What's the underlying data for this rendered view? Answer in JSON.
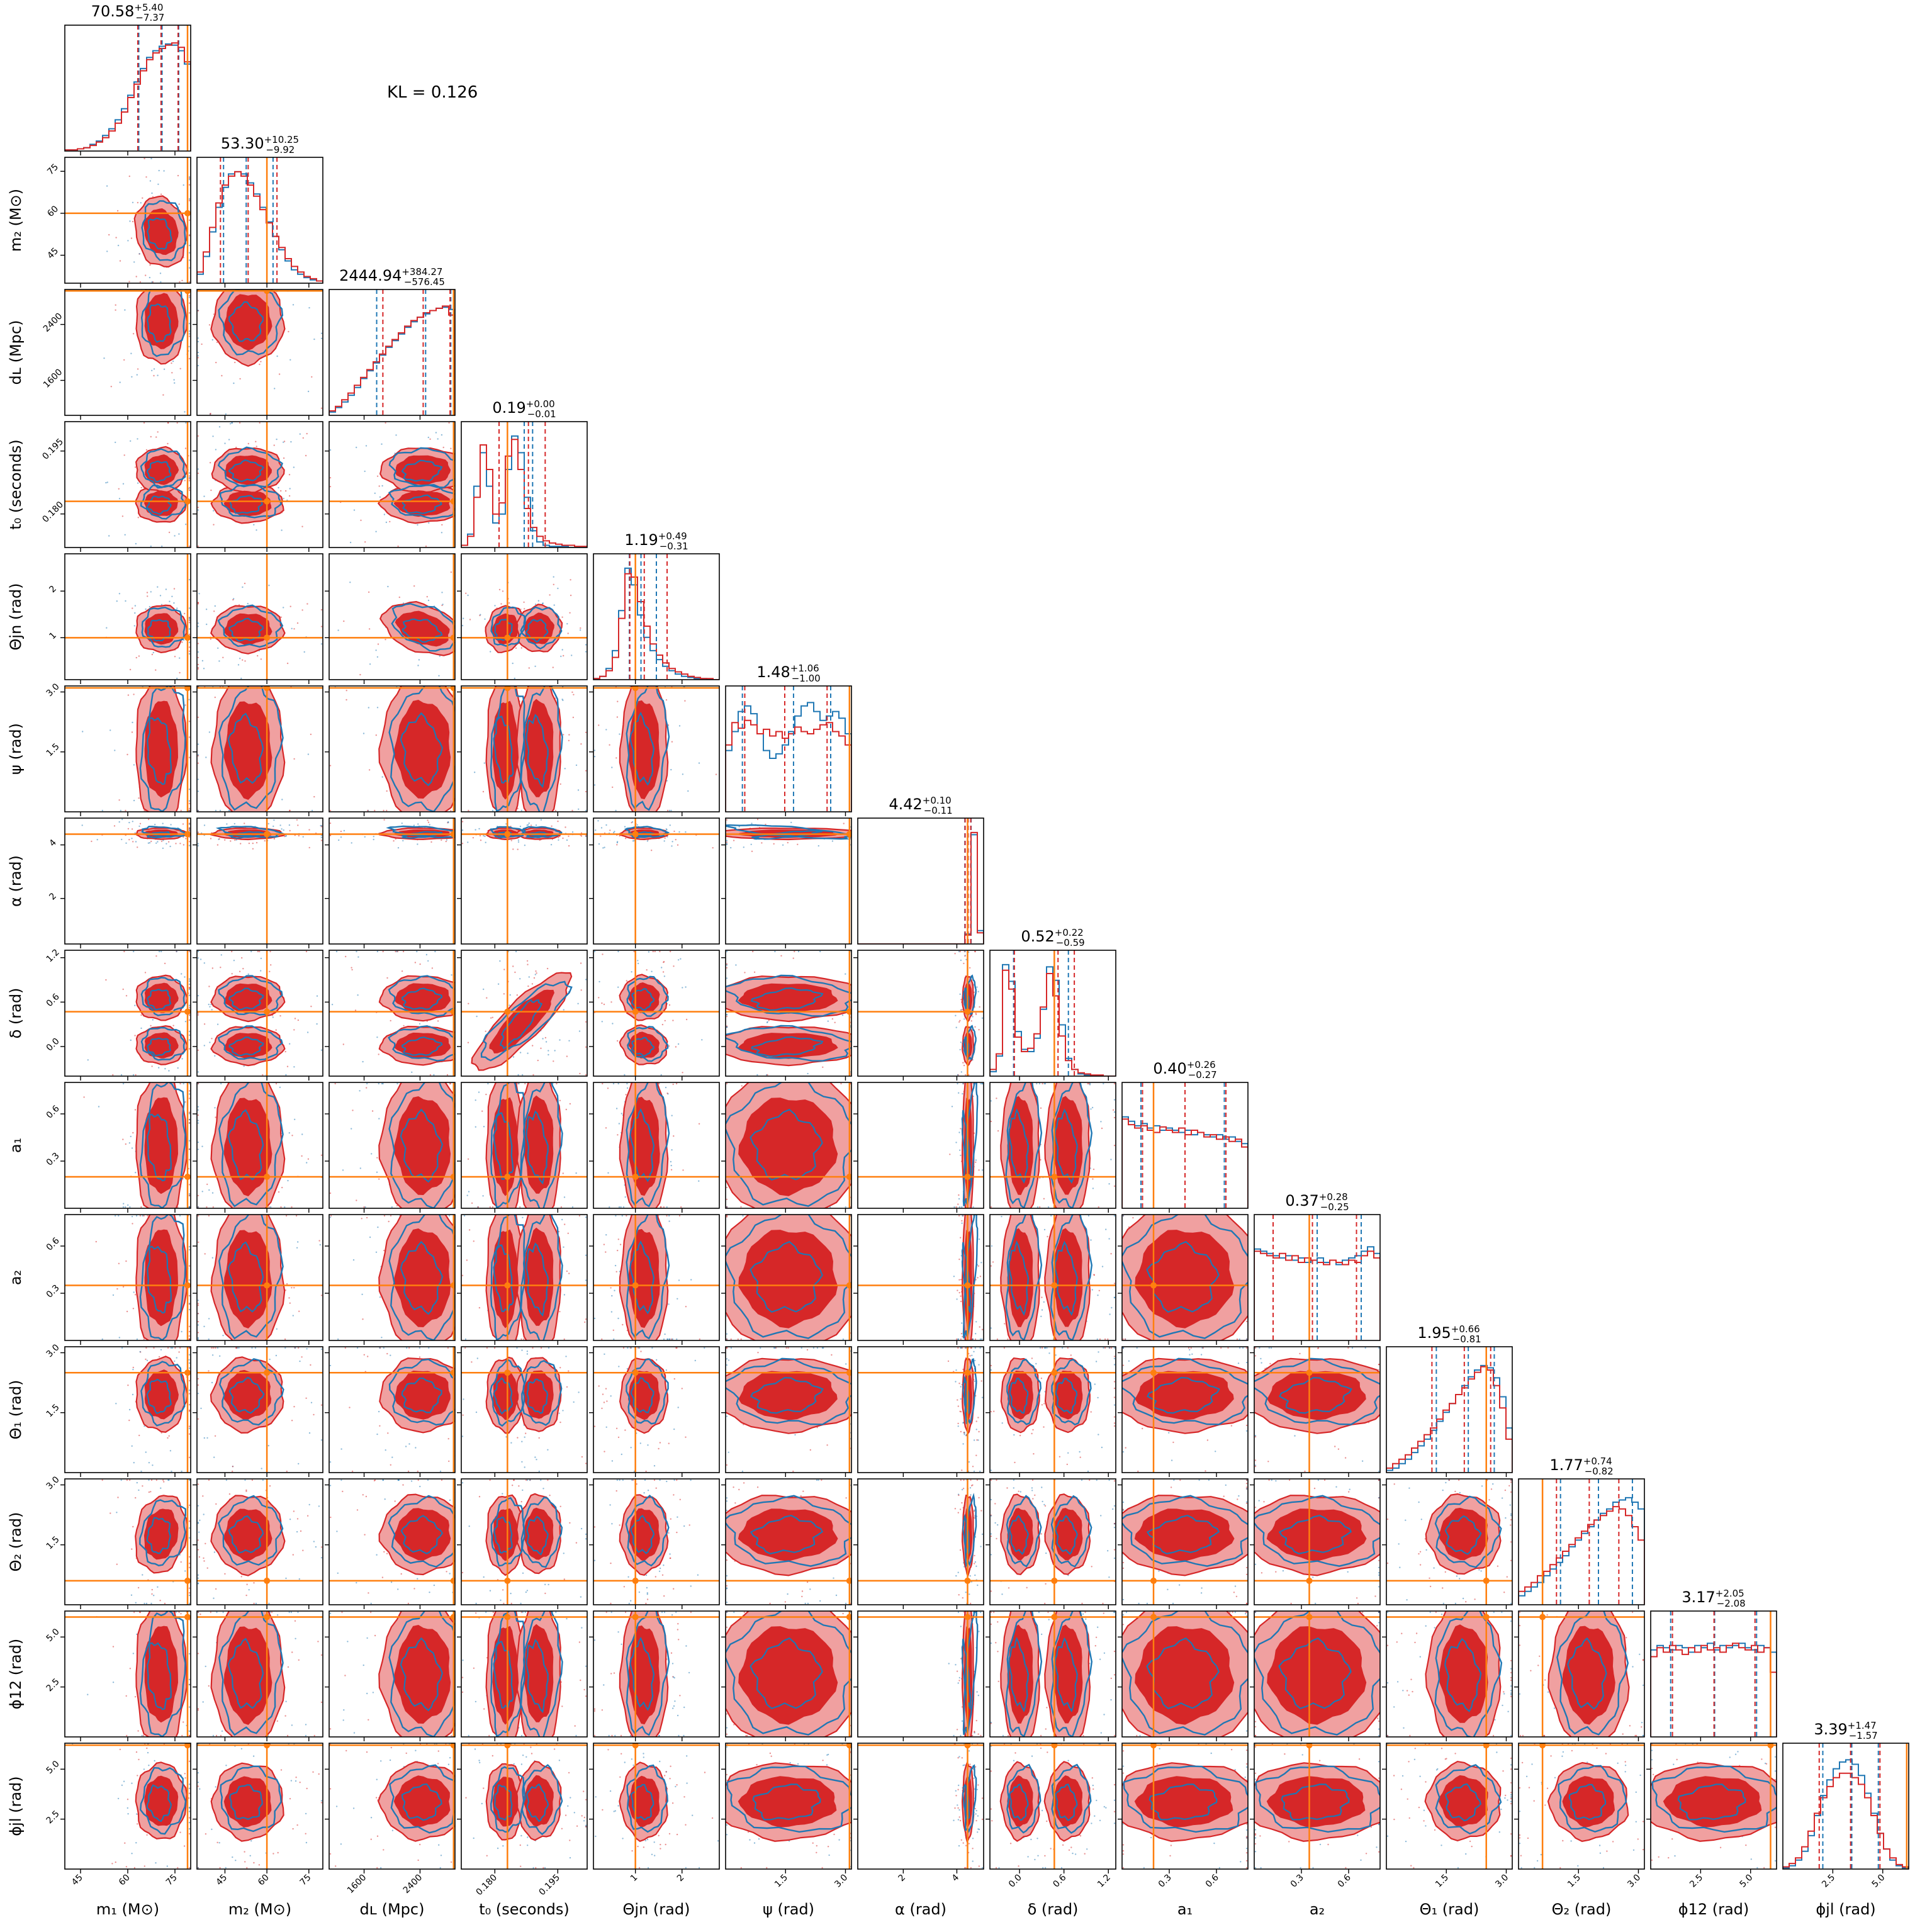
{
  "figure": {
    "kl_label": "KL = 0.126"
  },
  "colors": {
    "series_a": "#d62728",
    "series_a_fill": "#f0a0a0",
    "series_b": "#1f77b4",
    "truth": "#ff7f0e"
  },
  "chart_data": {
    "type": "corner",
    "title": "",
    "kl_divergence": 0.126,
    "parameters": [
      {
        "key": "m1",
        "label": "m₁ (M⊙)",
        "range": [
          40,
          80
        ],
        "ticks": [
          45,
          60,
          75
        ],
        "truth": 79,
        "summary": "70.58",
        "plus": "+5.40",
        "minus": "−7.37"
      },
      {
        "key": "m2",
        "label": "m₂ (M⊙)",
        "range": [
          35,
          80
        ],
        "ticks": [
          45,
          60,
          75
        ],
        "truth": 60,
        "summary": "53.30",
        "plus": "+10.25",
        "minus": "−9.92"
      },
      {
        "key": "dL",
        "label": "dʟ (Mpc)",
        "range": [
          1100,
          2900
        ],
        "ticks": [
          1600,
          2400
        ],
        "truth": 2880,
        "summary": "2444.94",
        "plus": "+384.27",
        "minus": "−576.45"
      },
      {
        "key": "t0",
        "label": "t₀ (seconds)",
        "range": [
          0.172,
          0.202
        ],
        "ticks": [
          0.18,
          0.195
        ],
        "truth": 0.183,
        "summary": "0.19",
        "plus": "+0.00",
        "minus": "−0.01"
      },
      {
        "key": "thjn",
        "label": "Θjn (rad)",
        "range": [
          0.1,
          2.8
        ],
        "ticks": [
          1,
          2
        ],
        "truth": 1.0,
        "summary": "1.19",
        "plus": "+0.49",
        "minus": "−0.31"
      },
      {
        "key": "psi",
        "label": "ψ (rad)",
        "range": [
          0.0,
          3.15
        ],
        "ticks": [
          1.5,
          3.0
        ],
        "truth": 3.1,
        "summary": "1.48",
        "plus": "+1.06",
        "minus": "−1.00"
      },
      {
        "key": "alpha",
        "label": "α (rad)",
        "range": [
          0.3,
          5.0
        ],
        "ticks": [
          2,
          4
        ],
        "truth": 4.4,
        "summary": "4.42",
        "plus": "+0.10",
        "minus": "−0.11"
      },
      {
        "key": "delta",
        "label": "δ (rad)",
        "range": [
          -0.4,
          1.3
        ],
        "ticks": [
          0.0,
          0.6,
          1.2
        ],
        "truth": 0.47,
        "summary": "0.52",
        "plus": "+0.22",
        "minus": "−0.59"
      },
      {
        "key": "a1",
        "label": "a₁",
        "range": [
          0.0,
          0.8
        ],
        "ticks": [
          0.3,
          0.6
        ],
        "truth": 0.2,
        "summary": "0.40",
        "plus": "+0.26",
        "minus": "−0.27"
      },
      {
        "key": "a2",
        "label": "a₂",
        "range": [
          0.0,
          0.8
        ],
        "ticks": [
          0.3,
          0.6
        ],
        "truth": 0.35,
        "summary": "0.37",
        "plus": "+0.28",
        "minus": "−0.25"
      },
      {
        "key": "th1",
        "label": "Θ₁ (rad)",
        "range": [
          0.0,
          3.15
        ],
        "ticks": [
          1.5,
          3.0
        ],
        "truth": 2.5,
        "summary": "1.95",
        "plus": "+0.66",
        "minus": "−0.81"
      },
      {
        "key": "th2",
        "label": "Θ₂ (rad)",
        "range": [
          0.0,
          3.15
        ],
        "ticks": [
          1.5,
          3.0
        ],
        "truth": 0.6,
        "summary": "1.77",
        "plus": "+0.74",
        "minus": "−0.82"
      },
      {
        "key": "phi12",
        "label": "ϕ12 (rad)",
        "range": [
          0.0,
          6.3
        ],
        "ticks": [
          2.5,
          5.0
        ],
        "truth": 6.0,
        "summary": "3.17",
        "plus": "+2.05",
        "minus": "−2.08"
      },
      {
        "key": "phijl",
        "label": "ϕjl (rad)",
        "range": [
          0.0,
          6.3
        ],
        "ticks": [
          2.5,
          5.0
        ],
        "truth": 6.2,
        "summary": "3.39",
        "plus": "+1.47",
        "minus": "−1.57"
      }
    ],
    "tick_labels": {
      "m1": [
        "45",
        "60",
        "75"
      ],
      "m2": [
        "45",
        "60",
        "75"
      ],
      "dL": [
        "1600",
        "2400"
      ],
      "t0": [
        "0.180",
        "0.195"
      ],
      "thjn": [
        "1",
        "2"
      ],
      "psi": [
        "1.5",
        "3.0"
      ],
      "alpha": [
        "2",
        "4"
      ],
      "delta": [
        "0.0",
        "0.6",
        "1.2"
      ],
      "a1": [
        "0.3",
        "0.6"
      ],
      "a2": [
        "0.3",
        "0.6"
      ],
      "th1": [
        "1.5",
        "3.0"
      ],
      "th2": [
        "1.5",
        "3.0"
      ],
      "phi12": [
        "2.5",
        "5.0"
      ],
      "phijl": [
        "2.5",
        "5.0"
      ]
    },
    "marginals": {
      "m1": {
        "a": [
          1,
          1,
          2,
          3,
          5,
          8,
          12,
          18,
          25,
          35,
          48,
          60,
          72,
          82,
          88,
          92,
          95,
          97,
          93,
          80
        ],
        "b": [
          1,
          1,
          2,
          3,
          6,
          9,
          14,
          20,
          28,
          38,
          50,
          62,
          74,
          84,
          90,
          94,
          96,
          95,
          90,
          78
        ]
      },
      "m2": {
        "a": [
          10,
          28,
          50,
          72,
          88,
          96,
          100,
          96,
          88,
          78,
          66,
          54,
          42,
          32,
          22,
          15,
          10,
          6,
          4,
          2
        ],
        "b": [
          8,
          24,
          46,
          68,
          86,
          98,
          100,
          98,
          90,
          80,
          68,
          55,
          42,
          30,
          20,
          12,
          8,
          5,
          3,
          2
        ]
      },
      "dL": {
        "a": [
          4,
          8,
          14,
          20,
          27,
          34,
          41,
          48,
          55,
          62,
          68,
          74,
          80,
          85,
          88,
          92,
          94,
          96,
          98,
          90
        ],
        "b": [
          3,
          7,
          12,
          18,
          25,
          33,
          40,
          47,
          54,
          61,
          67,
          73,
          79,
          84,
          88,
          91,
          94,
          96,
          97,
          95
        ]
      },
      "t0": {
        "a": [
          2,
          10,
          45,
          92,
          70,
          30,
          40,
          82,
          97,
          70,
          35,
          18,
          10,
          6,
          4,
          3,
          2,
          2,
          1,
          1
        ],
        "b": [
          2,
          12,
          55,
          85,
          55,
          22,
          30,
          70,
          100,
          85,
          45,
          15,
          5,
          2,
          1,
          1,
          1,
          0,
          0,
          0
        ]
      },
      "thjn": {
        "a": [
          1,
          3,
          8,
          20,
          55,
          95,
          92,
          70,
          48,
          32,
          22,
          15,
          10,
          7,
          5,
          3,
          2,
          1,
          1,
          0
        ],
        "b": [
          1,
          3,
          10,
          26,
          62,
          100,
          85,
          58,
          38,
          26,
          18,
          12,
          8,
          5,
          3,
          2,
          1,
          1,
          0,
          0
        ]
      },
      "psi": {
        "a": [
          60,
          80,
          75,
          82,
          78,
          70,
          74,
          68,
          72,
          66,
          70,
          76,
          72,
          70,
          74,
          78,
          80,
          72,
          68,
          60
        ],
        "b": [
          55,
          72,
          90,
          95,
          88,
          70,
          55,
          48,
          52,
          60,
          72,
          86,
          95,
          98,
          90,
          82,
          86,
          90,
          84,
          70
        ]
      },
      "alpha": {
        "a": [
          0,
          0,
          0,
          0,
          0,
          0,
          0,
          0,
          0,
          0,
          0,
          0,
          0,
          0,
          0,
          0,
          0,
          8,
          100,
          10
        ],
        "b": [
          0,
          0,
          0,
          0,
          0,
          0,
          0,
          0,
          0,
          0,
          0,
          0,
          0,
          0,
          0,
          0,
          0,
          9,
          98,
          12
        ]
      },
      "delta": {
        "a": [
          6,
          20,
          95,
          78,
          35,
          22,
          25,
          38,
          62,
          92,
          72,
          36,
          14,
          6,
          3,
          2,
          1,
          1,
          0,
          0
        ],
        "b": [
          4,
          18,
          100,
          85,
          40,
          24,
          22,
          34,
          60,
          98,
          86,
          46,
          16,
          6,
          2,
          1,
          0,
          0,
          0,
          0
        ]
      },
      "a1": {
        "a": [
          80,
          75,
          72,
          74,
          70,
          68,
          73,
          70,
          68,
          72,
          66,
          70,
          68,
          64,
          66,
          62,
          64,
          60,
          62,
          55
        ],
        "b": [
          82,
          78,
          74,
          76,
          72,
          74,
          70,
          72,
          70,
          68,
          70,
          66,
          68,
          66,
          64,
          66,
          62,
          64,
          60,
          58
        ]
      },
      "a2": {
        "a": [
          80,
          78,
          76,
          74,
          78,
          72,
          76,
          70,
          74,
          72,
          70,
          68,
          72,
          70,
          68,
          72,
          70,
          76,
          80,
          74
        ],
        "b": [
          82,
          80,
          78,
          76,
          74,
          76,
          72,
          74,
          70,
          72,
          74,
          70,
          72,
          68,
          72,
          74,
          76,
          80,
          84,
          78
        ]
      },
      "th1": {
        "a": [
          4,
          8,
          12,
          16,
          22,
          28,
          34,
          40,
          48,
          56,
          62,
          70,
          76,
          84,
          90,
          95,
          92,
          78,
          58,
          30
        ],
        "b": [
          2,
          4,
          8,
          12,
          18,
          24,
          30,
          38,
          46,
          54,
          62,
          70,
          78,
          86,
          92,
          96,
          94,
          85,
          68,
          40
        ]
      },
      "th2": {
        "a": [
          12,
          16,
          20,
          26,
          30,
          36,
          42,
          48,
          54,
          60,
          66,
          72,
          76,
          80,
          84,
          88,
          86,
          80,
          70,
          58
        ],
        "b": [
          8,
          12,
          16,
          20,
          26,
          32,
          38,
          44,
          52,
          58,
          64,
          70,
          76,
          82,
          86,
          92,
          94,
          96,
          92,
          86
        ]
      },
      "phi12": {
        "a": [
          72,
          80,
          76,
          82,
          78,
          74,
          80,
          76,
          82,
          78,
          80,
          76,
          82,
          84,
          80,
          78,
          82,
          76,
          80,
          58
        ],
        "b": [
          78,
          82,
          80,
          78,
          82,
          80,
          76,
          82,
          80,
          84,
          78,
          82,
          80,
          82,
          84,
          80,
          78,
          82,
          80,
          76
        ]
      },
      "phijl": {
        "a": [
          2,
          5,
          10,
          20,
          34,
          50,
          64,
          74,
          82,
          86,
          86,
          82,
          76,
          64,
          48,
          32,
          18,
          10,
          4,
          2
        ],
        "b": [
          1,
          3,
          8,
          16,
          30,
          48,
          66,
          80,
          90,
          96,
          98,
          94,
          84,
          68,
          50,
          32,
          18,
          8,
          3,
          1
        ]
      }
    },
    "quantiles": {
      "m1": {
        "a": [
          63.2,
          70.58,
          76.0
        ],
        "b": [
          63.5,
          70.9,
          76.2
        ]
      },
      "m2": {
        "a": [
          43.4,
          53.3,
          63.6
        ],
        "b": [
          44.5,
          52.6,
          62.2
        ]
      },
      "dL": {
        "a": [
          1868.5,
          2444.94,
          2829.2
        ],
        "b": [
          1780.0,
          2480.0,
          2840.0
        ]
      },
      "t0": {
        "a": [
          0.181,
          0.188,
          0.192
        ],
        "b": [
          0.181,
          0.187,
          0.189
        ]
      },
      "thjn": {
        "a": [
          0.88,
          1.19,
          1.68
        ],
        "b": [
          0.87,
          1.12,
          1.45
        ]
      },
      "psi": {
        "a": [
          0.48,
          1.48,
          2.54
        ],
        "b": [
          0.42,
          1.7,
          2.63
        ]
      },
      "alpha": {
        "a": [
          4.31,
          4.42,
          4.52
        ],
        "b": [
          4.3,
          4.42,
          4.53
        ]
      },
      "delta": {
        "a": [
          -0.07,
          0.52,
          0.74
        ],
        "b": [
          -0.08,
          0.47,
          0.66
        ]
      },
      "a1": {
        "a": [
          0.13,
          0.4,
          0.66
        ],
        "b": [
          0.12,
          0.4,
          0.65
        ]
      },
      "a2": {
        "a": [
          0.12,
          0.37,
          0.65
        ],
        "b": [
          0.12,
          0.4,
          0.68
        ]
      },
      "th1": {
        "a": [
          1.14,
          1.95,
          2.61
        ],
        "b": [
          1.25,
          2.05,
          2.7
        ]
      },
      "th2": {
        "a": [
          0.95,
          1.77,
          2.51
        ],
        "b": [
          1.05,
          2.0,
          2.85
        ]
      },
      "phi12": {
        "a": [
          1.09,
          3.17,
          5.22
        ],
        "b": [
          1.0,
          3.2,
          5.3
        ]
      },
      "phijl": {
        "a": [
          1.82,
          3.39,
          4.86
        ],
        "b": [
          2.0,
          3.45,
          4.78
        ]
      }
    },
    "pair_shapes": {
      "default": "blob",
      "t0": "bimodal_x",
      "delta": "bimodal_x",
      "alpha": "narrow_x",
      "psi": "flat_x",
      "a1": "flat_x",
      "a2": "flat_x",
      "phi12": "flat_x",
      "correlations": {
        "t0|delta": 0.92,
        "thjn|dL": -0.55,
        "thjn|t0": -0.5,
        "m2|m1": 0.35,
        "th2|m1": -0.3,
        "th1|m2": -0.3,
        "thjn|delta": -0.45
      }
    }
  }
}
